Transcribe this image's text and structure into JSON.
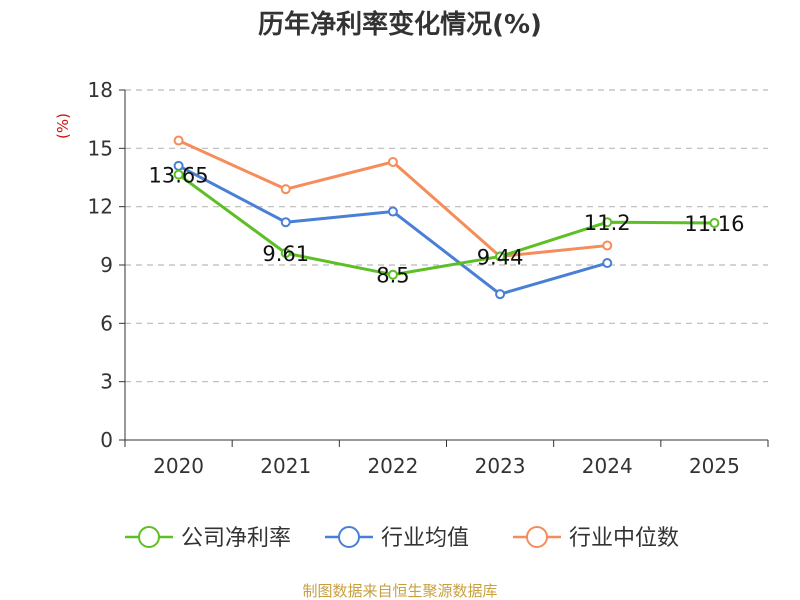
{
  "chart_data": {
    "type": "line",
    "title": "历年净利率变化情况(%)",
    "ylabel": "(%)",
    "xlabel": "",
    "ylim": [
      0,
      18
    ],
    "yticks": [
      0,
      3,
      6,
      9,
      12,
      15,
      18
    ],
    "categories": [
      "2020",
      "2021",
      "2022",
      "2023",
      "2024",
      "2025"
    ],
    "grid": true,
    "legend_position": "bottom",
    "series": [
      {
        "name": "公司净利率",
        "color": "#5cc024",
        "values": [
          13.65,
          9.61,
          8.5,
          9.44,
          11.2,
          11.16
        ],
        "labels": [
          "13.65",
          "9.61",
          "8.5",
          "9.44",
          "11.2",
          "11.16"
        ]
      },
      {
        "name": "行业均值",
        "color": "#4a7fd6",
        "values": [
          14.1,
          11.2,
          11.75,
          7.5,
          9.1,
          null
        ]
      },
      {
        "name": "行业中位数",
        "color": "#f58c5a",
        "values": [
          15.4,
          12.9,
          14.3,
          9.44,
          10.0,
          null
        ]
      }
    ],
    "colors": {
      "axis": "#333333",
      "grid": "#bbbbbb",
      "ylabel": "#d01010"
    }
  },
  "footer": {
    "source": "制图数据来自恒生聚源数据库",
    "color": "#c8a040"
  }
}
